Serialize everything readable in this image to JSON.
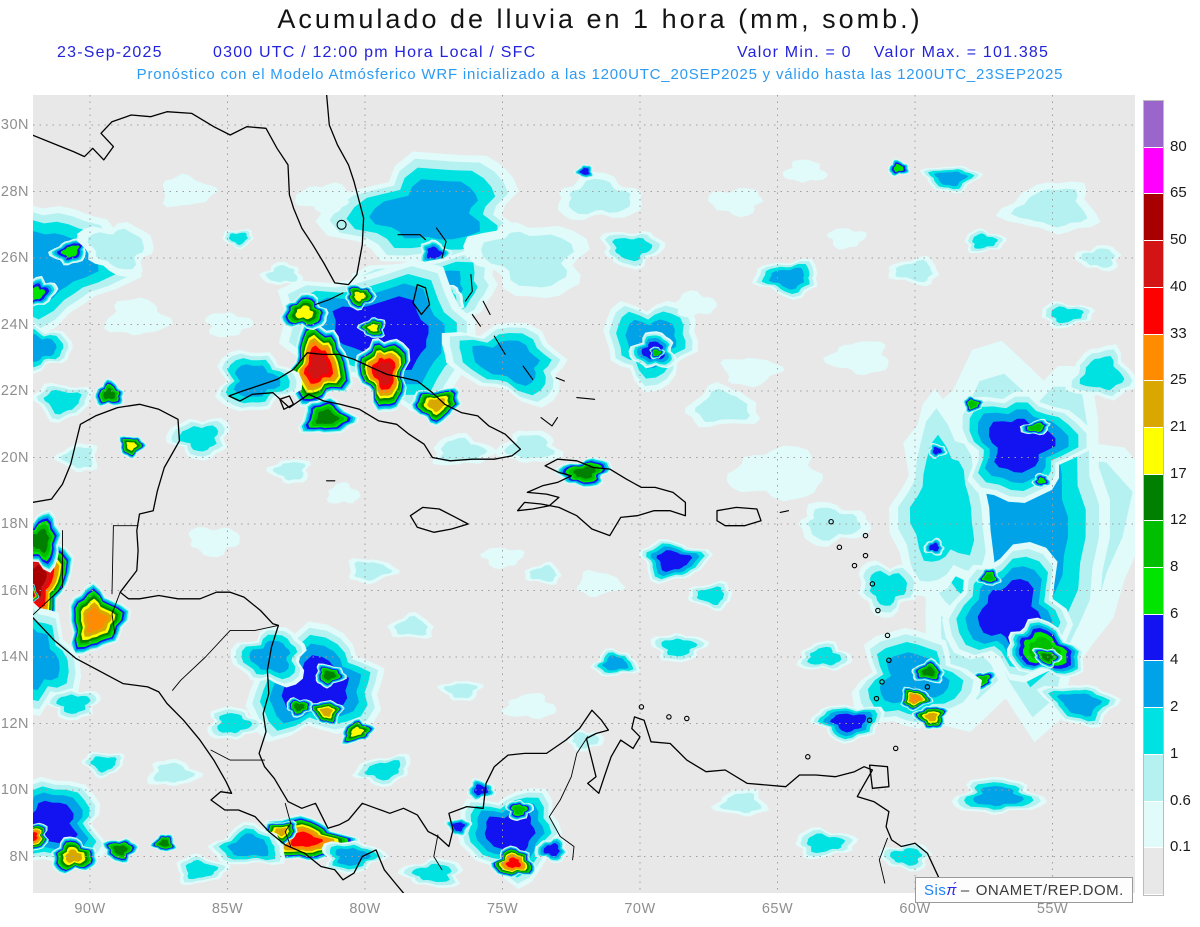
{
  "title": "Acumulado de lluvia en 1 hora (mm, somb.)",
  "subtitle": {
    "date": "23-Sep-2025",
    "time_info": "0300 UTC / 12:00 pm Hora Local / SFC",
    "min_label": "Valor Min. = 0",
    "max_label": "Valor Max. = 101.385",
    "forecast_line": "Pronóstico con el Modelo Atmósferico WRF inicializado a las 1200UTC_20SEP2025 y válido hasta las  1200UTC_23SEP2025"
  },
  "map": {
    "lat_labels": [
      "30N",
      "28N",
      "26N",
      "24N",
      "22N",
      "20N",
      "18N",
      "16N",
      "14N",
      "12N",
      "10N",
      "8N"
    ],
    "lon_labels": [
      "90W",
      "85W",
      "80W",
      "75W",
      "70W",
      "65W",
      "60W",
      "55W"
    ],
    "attribution": {
      "prefix": "Sis",
      "pi": "π́",
      "separator": "–",
      "org": "ONAMET/REP.DOM."
    }
  },
  "colorbar": {
    "tick_labels": [
      "80",
      "65",
      "50",
      "40",
      "33",
      "25",
      "21",
      "17",
      "12",
      "8",
      "6",
      "4",
      "2",
      "1",
      "0.6",
      "0.1"
    ],
    "colors_top_to_bottom": [
      "#9A66CC",
      "#FF00FF",
      "#A80000",
      "#D21414",
      "#FF0000",
      "#FF8C00",
      "#D8A800",
      "#FFFF00",
      "#007F00",
      "#00BE00",
      "#00E400",
      "#1313F2",
      "#00A3E8",
      "#00E2E2",
      "#B5F1F1",
      "#E1FAFA",
      "#E8E8E8"
    ]
  },
  "colors": {
    "background": "#E8E8E8",
    "grid": "#9F9F9F",
    "coast": "#000000",
    "title_text": "#141414",
    "subtitle_blue": "#2323DC",
    "forecast_blue": "#2E9BF2",
    "axis_label": "#8F8F8F",
    "level_colors": [
      "#E1FAFA",
      "#B5F1F1",
      "#00E2E2",
      "#00A3E8",
      "#1313F2",
      "#00E400",
      "#00BE00",
      "#007F00",
      "#FFFF00",
      "#D8A800",
      "#FF8C00",
      "#FF0000",
      "#D21414",
      "#A80000",
      "#FF00FF",
      "#9A66CC"
    ]
  },
  "rain_cells": [
    [
      56.3,
      17.6,
      112,
      178,
      3,
      0
    ],
    [
      56.2,
      17.6,
      96,
      162,
      4,
      0
    ],
    [
      59.0,
      18.5,
      48,
      95,
      3,
      0
    ],
    [
      56.2,
      20.4,
      62,
      54,
      5,
      3
    ],
    [
      56.5,
      15.3,
      60,
      64,
      5,
      -5
    ],
    [
      55.3,
      14.2,
      40,
      25,
      7,
      20
    ],
    [
      55.2,
      14.0,
      14,
      9,
      8,
      15
    ],
    [
      57.3,
      16.4,
      11,
      9,
      7,
      0
    ],
    [
      57.9,
      21.6,
      10,
      8,
      7,
      0
    ],
    [
      55.6,
      20.9,
      15,
      7,
      7,
      -10
    ],
    [
      55.4,
      19.3,
      9,
      7,
      6,
      0
    ],
    [
      57.6,
      13.3,
      15,
      9,
      7,
      -15
    ],
    [
      59.3,
      17.3,
      10,
      8,
      5,
      0
    ],
    [
      59.2,
      20.2,
      9,
      7,
      5,
      0
    ],
    [
      54.0,
      12.6,
      36,
      20,
      4,
      10
    ],
    [
      53.2,
      22.5,
      32,
      26,
      3,
      0
    ],
    [
      54.5,
      24.3,
      26,
      12,
      3,
      0
    ],
    [
      53.3,
      26.0,
      22,
      12,
      2,
      0
    ],
    [
      60.1,
      13.3,
      58,
      48,
      4,
      0
    ],
    [
      62.4,
      12.05,
      34,
      18,
      5,
      0
    ],
    [
      59.5,
      13.55,
      16,
      11,
      8,
      0
    ],
    [
      60.0,
      12.75,
      15,
      11,
      11,
      0
    ],
    [
      59.4,
      12.2,
      16,
      12,
      10,
      0
    ],
    [
      63.3,
      14.0,
      26,
      14,
      3,
      0
    ],
    [
      61.0,
      16.1,
      30,
      26,
      3,
      0
    ],
    [
      77.6,
      27.4,
      95,
      55,
      4,
      -5
    ],
    [
      77.5,
      26.15,
      15,
      12,
      5,
      0
    ],
    [
      77.9,
      24.9,
      78,
      40,
      4,
      -8
    ],
    [
      77.6,
      24.75,
      34,
      16,
      5,
      -10
    ],
    [
      77.95,
      24.7,
      7,
      5,
      6,
      0
    ],
    [
      74.0,
      26.0,
      58,
      36,
      2,
      10
    ],
    [
      71.5,
      27.8,
      42,
      22,
      2,
      0
    ],
    [
      70.3,
      26.3,
      30,
      18,
      3,
      0
    ],
    [
      72.0,
      28.6,
      9,
      7,
      5,
      0
    ],
    [
      86.5,
      28.0,
      26,
      15,
      1,
      0
    ],
    [
      84.6,
      26.6,
      15,
      9,
      3,
      0
    ],
    [
      83.0,
      25.5,
      20,
      11,
      2,
      0
    ],
    [
      85.0,
      24.0,
      22,
      12,
      1,
      0
    ],
    [
      81.5,
      27.8,
      26,
      14,
      1,
      0
    ],
    [
      60.6,
      28.7,
      11,
      8,
      6,
      0
    ],
    [
      58.7,
      28.4,
      27,
      13,
      4,
      0
    ],
    [
      55.0,
      27.5,
      45,
      25,
      2,
      0
    ],
    [
      57.5,
      26.5,
      20,
      11,
      3,
      0
    ],
    [
      66.5,
      27.7,
      26,
      13,
      1,
      0
    ],
    [
      64.0,
      28.6,
      20,
      11,
      1,
      0
    ],
    [
      62.5,
      26.6,
      18,
      10,
      1,
      0
    ],
    [
      60.0,
      25.6,
      25,
      13,
      2,
      0
    ],
    [
      91.5,
      25.8,
      78,
      62,
      4,
      -15
    ],
    [
      90.7,
      26.2,
      19,
      12,
      6,
      -20
    ],
    [
      92.0,
      24.9,
      23,
      13,
      6,
      -30
    ],
    [
      91.9,
      23.3,
      32,
      23,
      4,
      0
    ],
    [
      89.0,
      26.3,
      36,
      25,
      2,
      10
    ],
    [
      88.3,
      24.2,
      30,
      18,
      1,
      0
    ],
    [
      91.0,
      21.7,
      28,
      18,
      3,
      0
    ],
    [
      79.3,
      23.8,
      100,
      64,
      5,
      12
    ],
    [
      81.7,
      22.75,
      30,
      41,
      13,
      8
    ],
    [
      79.3,
      22.55,
      25,
      37,
      13,
      -5
    ],
    [
      82.2,
      24.35,
      23,
      17,
      9,
      0
    ],
    [
      80.2,
      24.85,
      15,
      12,
      9,
      0
    ],
    [
      79.7,
      23.9,
      13,
      10,
      9,
      0
    ],
    [
      81.4,
      21.2,
      27,
      18,
      8,
      0
    ],
    [
      77.4,
      21.6,
      25,
      17,
      10,
      -10
    ],
    [
      74.8,
      22.9,
      62,
      35,
      4,
      15
    ],
    [
      84.0,
      22.3,
      40,
      30,
      4,
      0
    ],
    [
      86.0,
      20.6,
      30,
      20,
      3,
      0
    ],
    [
      89.3,
      21.9,
      15,
      13,
      8,
      0
    ],
    [
      88.5,
      20.35,
      13,
      11,
      9,
      0
    ],
    [
      90.4,
      20.0,
      20,
      14,
      2,
      0
    ],
    [
      76.5,
      20.2,
      30,
      15,
      2,
      0
    ],
    [
      69.6,
      23.5,
      46,
      42,
      4,
      0
    ],
    [
      69.5,
      23.2,
      22,
      18,
      5,
      0
    ],
    [
      69.4,
      23.15,
      7,
      6,
      7,
      0
    ],
    [
      64.6,
      25.4,
      32,
      18,
      4,
      0
    ],
    [
      67.0,
      21.5,
      35,
      20,
      2,
      0
    ],
    [
      66.0,
      22.6,
      28,
      14,
      1,
      0
    ],
    [
      62.0,
      23.0,
      30,
      16,
      1,
      0
    ],
    [
      68.0,
      24.6,
      20,
      12,
      1,
      0
    ],
    [
      72.0,
      19.55,
      27,
      14,
      8,
      -8
    ],
    [
      74.0,
      20.3,
      30,
      16,
      2,
      0
    ],
    [
      68.8,
      16.9,
      33,
      20,
      5,
      0
    ],
    [
      67.4,
      15.85,
      22,
      13,
      3,
      0
    ],
    [
      70.9,
      13.8,
      22,
      13,
      4,
      0
    ],
    [
      68.6,
      14.3,
      26,
      14,
      3,
      0
    ],
    [
      65.0,
      19.5,
      45,
      25,
      1,
      0
    ],
    [
      63.0,
      18.0,
      35,
      20,
      2,
      0
    ],
    [
      92.0,
      16.3,
      35,
      49,
      14,
      5
    ],
    [
      92.15,
      15.9,
      7,
      9,
      15,
      0
    ],
    [
      89.8,
      15.1,
      29,
      33,
      11,
      15
    ],
    [
      91.8,
      17.5,
      22,
      27,
      8,
      0
    ],
    [
      92.0,
      13.9,
      40,
      56,
      4,
      0
    ],
    [
      90.6,
      12.6,
      25,
      15,
      3,
      0
    ],
    [
      81.8,
      13.1,
      68,
      52,
      5,
      -15
    ],
    [
      81.3,
      13.45,
      15,
      11,
      8,
      0
    ],
    [
      81.4,
      12.35,
      16,
      12,
      10,
      10
    ],
    [
      80.3,
      11.75,
      17,
      11,
      9,
      -20
    ],
    [
      82.4,
      12.5,
      13,
      9,
      8,
      0
    ],
    [
      83.4,
      14.0,
      36,
      28,
      4,
      0
    ],
    [
      84.8,
      12.0,
      26,
      16,
      3,
      0
    ],
    [
      79.3,
      10.6,
      28,
      14,
      3,
      -10
    ],
    [
      78.3,
      14.9,
      22,
      12,
      2,
      0
    ],
    [
      79.8,
      16.6,
      24,
      12,
      2,
      0
    ],
    [
      82.7,
      19.6,
      20,
      12,
      2,
      0
    ],
    [
      80.8,
      18.9,
      16,
      10,
      1,
      0
    ],
    [
      85.5,
      17.5,
      25,
      14,
      1,
      0
    ],
    [
      91.5,
      9.0,
      58,
      42,
      5,
      0
    ],
    [
      82.2,
      8.5,
      46,
      22,
      12,
      5
    ],
    [
      83.05,
      8.75,
      17,
      11,
      10,
      0
    ],
    [
      84.2,
      8.3,
      36,
      20,
      4,
      0
    ],
    [
      80.5,
      8.0,
      30,
      16,
      4,
      0
    ],
    [
      92.1,
      8.6,
      17,
      13,
      12,
      0
    ],
    [
      90.6,
      8.0,
      23,
      17,
      10,
      0
    ],
    [
      88.9,
      8.2,
      17,
      12,
      8,
      0
    ],
    [
      87.3,
      8.4,
      12,
      9,
      8,
      0
    ],
    [
      86.0,
      7.6,
      25,
      14,
      3,
      0
    ],
    [
      74.7,
      8.7,
      50,
      44,
      5,
      0
    ],
    [
      74.6,
      7.8,
      21,
      15,
      12,
      0
    ],
    [
      74.4,
      9.4,
      13,
      10,
      7,
      0
    ],
    [
      73.2,
      8.2,
      16,
      12,
      5,
      0
    ],
    [
      75.8,
      10.0,
      14,
      10,
      5,
      0
    ],
    [
      76.6,
      8.9,
      12,
      9,
      5,
      0
    ],
    [
      66.3,
      9.6,
      25,
      13,
      2,
      0
    ],
    [
      63.3,
      8.4,
      30,
      14,
      3,
      0
    ],
    [
      60.3,
      8.0,
      25,
      13,
      3,
      0
    ],
    [
      57.0,
      9.8,
      42,
      18,
      4,
      0
    ],
    [
      75.0,
      17.0,
      20,
      10,
      1,
      0
    ],
    [
      73.5,
      16.5,
      18,
      10,
      2,
      0
    ],
    [
      71.5,
      16.2,
      22,
      12,
      1,
      0
    ],
    [
      76.5,
      13.0,
      20,
      10,
      2,
      0
    ],
    [
      74.0,
      12.5,
      25,
      12,
      1,
      0
    ],
    [
      72.0,
      11.5,
      18,
      10,
      2,
      0
    ],
    [
      77.5,
      7.5,
      30,
      14,
      3,
      0
    ],
    [
      87.0,
      10.5,
      25,
      13,
      2,
      0
    ],
    [
      89.5,
      10.8,
      20,
      12,
      3,
      0
    ]
  ]
}
